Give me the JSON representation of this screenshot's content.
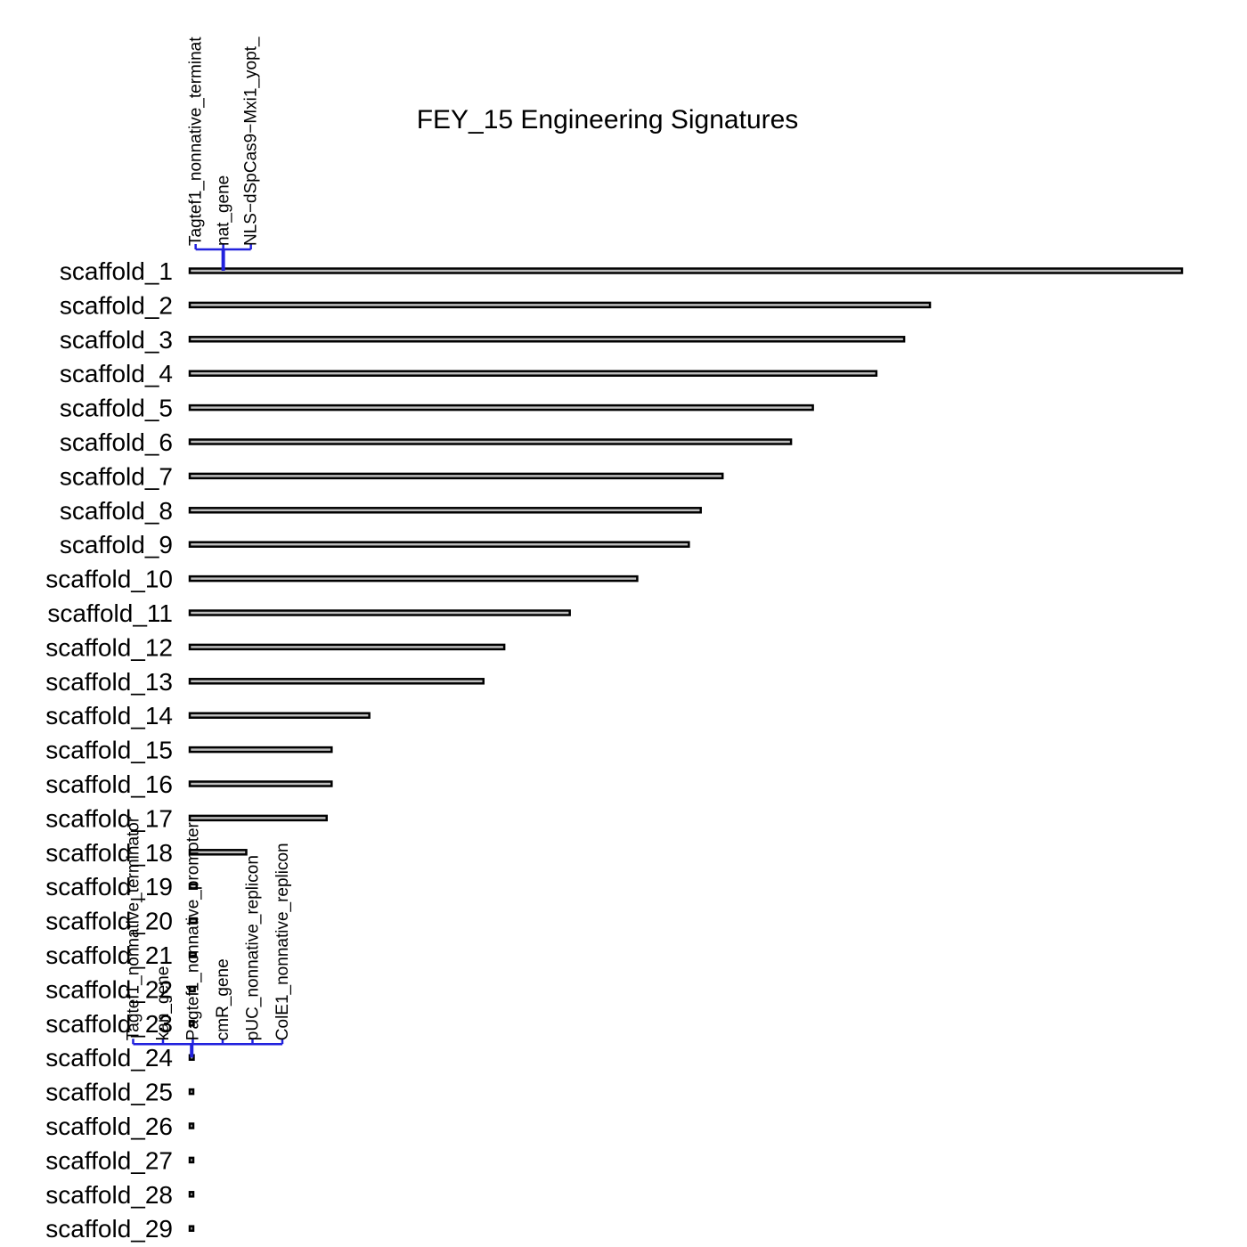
{
  "chart_data": {
    "type": "bar",
    "orientation": "horizontal",
    "title": "FEY_15 Engineering Signatures",
    "xlabel": "",
    "ylabel": "",
    "grid": false,
    "categories": [
      "scaffold_1",
      "scaffold_2",
      "scaffold_3",
      "scaffold_4",
      "scaffold_5",
      "scaffold_6",
      "scaffold_7",
      "scaffold_8",
      "scaffold_9",
      "scaffold_10",
      "scaffold_11",
      "scaffold_12",
      "scaffold_13",
      "scaffold_14",
      "scaffold_15",
      "scaffold_16",
      "scaffold_17",
      "scaffold_18",
      "scaffold_19",
      "scaffold_20",
      "scaffold_21",
      "scaffold_22",
      "scaffold_23",
      "scaffold_24",
      "scaffold_25",
      "scaffold_26",
      "scaffold_27",
      "scaffold_28",
      "scaffold_29"
    ],
    "values": [
      1.0,
      0.746,
      0.72,
      0.692,
      0.628,
      0.606,
      0.537,
      0.515,
      0.503,
      0.451,
      0.383,
      0.317,
      0.296,
      0.181,
      0.143,
      0.143,
      0.138,
      0.057,
      0.007,
      0.007,
      0.006,
      0.005,
      0.004,
      0.004,
      0.003,
      0.003,
      0.002,
      0.002,
      0.002
    ],
    "annotations": [
      {
        "scaffold": "scaffold_1",
        "position": 0.032,
        "labels": [
          "Tagtef1_nonnative_terminat",
          "nat_gene",
          "NLS−dSpCas9−Mxi1_yopt_"
        ]
      },
      {
        "scaffold": "scaffold_24",
        "position": 0.002,
        "labels": [
          "Tagtef1_nonnative_terminator",
          "kan_gene",
          "Pagtef1_nonnative_promoter",
          "cmR_gene",
          "pUC_nonnative_replicon",
          "ColE1_nonnative_replicon"
        ]
      }
    ]
  }
}
